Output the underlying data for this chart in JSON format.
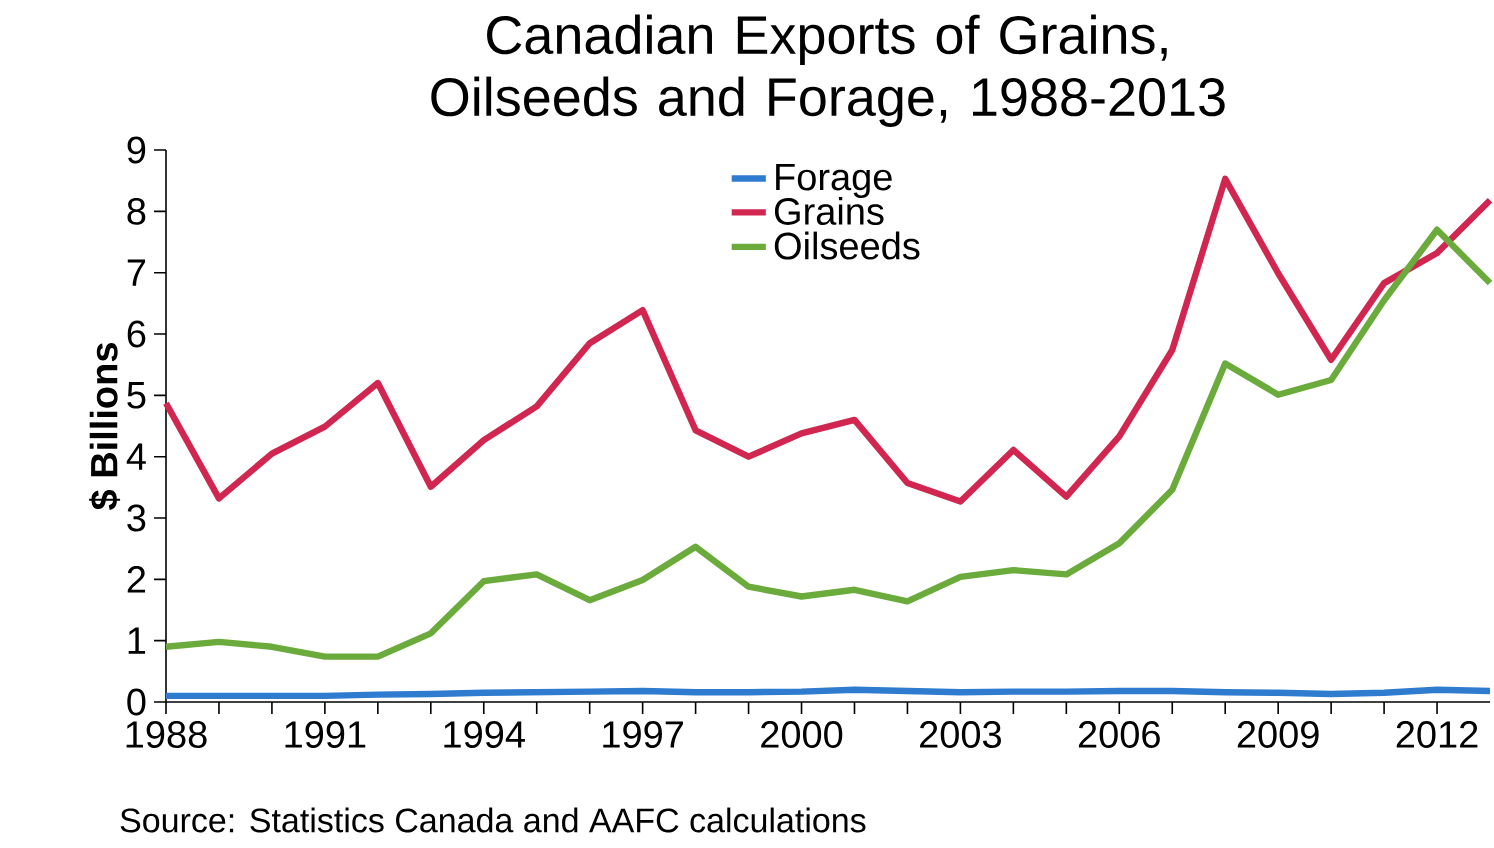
{
  "chart_data": {
    "type": "line",
    "title": "Canadian Exports of Grains, Oilseeds and Forage, 1988-2013",
    "ylabel": "$ Billions",
    "annotations": [
      "Source: Statistics Canada and AAFC calculations"
    ],
    "x": [
      1988,
      1989,
      1990,
      1991,
      1992,
      1993,
      1994,
      1995,
      1996,
      1997,
      1998,
      1999,
      2000,
      2001,
      2002,
      2003,
      2004,
      2005,
      2006,
      2007,
      2008,
      2009,
      2010,
      2011,
      2012,
      2013
    ],
    "series": [
      {
        "name": "Forage",
        "color": "#2e7bcf",
        "values": [
          0.1,
          0.1,
          0.1,
          0.1,
          0.12,
          0.13,
          0.15,
          0.16,
          0.17,
          0.18,
          0.16,
          0.16,
          0.17,
          0.2,
          0.18,
          0.16,
          0.17,
          0.17,
          0.18,
          0.18,
          0.16,
          0.15,
          0.13,
          0.15,
          0.2,
          0.18
        ]
      },
      {
        "name": "Grains",
        "color": "#d0264f",
        "values": [
          4.87,
          3.32,
          4.05,
          4.49,
          5.2,
          3.51,
          4.27,
          4.82,
          5.85,
          6.39,
          4.43,
          4.0,
          4.38,
          4.6,
          3.57,
          3.27,
          4.11,
          3.35,
          4.33,
          5.74,
          8.53,
          6.99,
          5.58,
          6.83,
          7.32,
          8.18
        ]
      },
      {
        "name": "Oilseeds",
        "color": "#6aab3c",
        "values": [
          0.9,
          0.98,
          0.9,
          0.74,
          0.74,
          1.12,
          1.97,
          2.08,
          1.66,
          1.99,
          2.53,
          1.88,
          1.72,
          1.83,
          1.64,
          2.04,
          2.15,
          2.08,
          2.59,
          3.46,
          5.52,
          5.01,
          5.25,
          6.55,
          7.7,
          6.83
        ]
      }
    ],
    "xlim": [
      1988,
      2013
    ],
    "xticks": [
      1988,
      1991,
      1994,
      1997,
      2000,
      2003,
      2006,
      2009,
      2012
    ],
    "ylim": [
      0,
      9
    ],
    "yticks": [
      0,
      1,
      2,
      3,
      4,
      5,
      6,
      7,
      8,
      9
    ],
    "grid": false,
    "legend": "top",
    "marker": "none",
    "line_style": "solid"
  }
}
